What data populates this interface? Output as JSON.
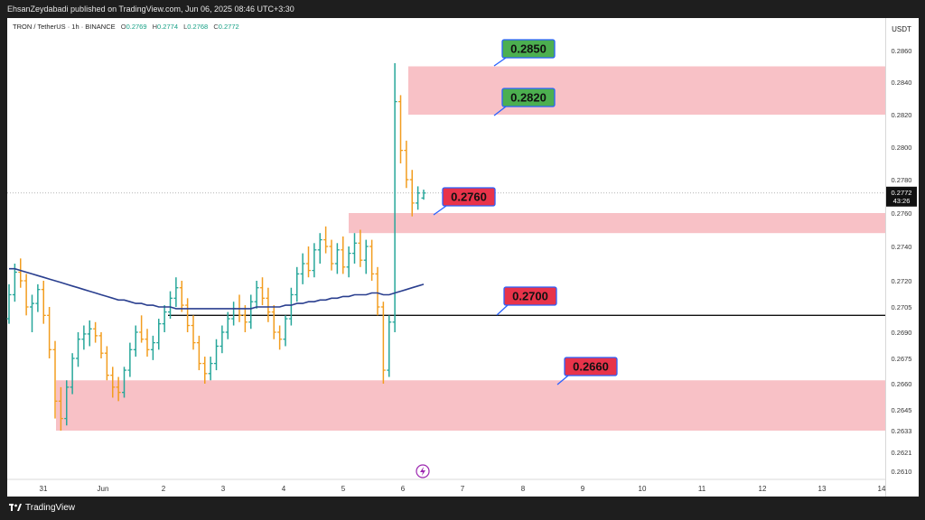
{
  "header": {
    "publisher": "EhsanZeydabadi published on TradingView.com, Jun 06, 2025 08:46 UTC+3:30"
  },
  "legend": {
    "symbol": "TRON / TetherUS · 1h · BINANCE",
    "o_label": "O",
    "o_value": "0.2769",
    "h_label": "H",
    "h_value": "0.2774",
    "l_label": "L",
    "l_value": "0.2768",
    "c_label": "C",
    "c_value": "0.2772"
  },
  "price_scale": {
    "currency": "USDT",
    "current_price": "0.2772",
    "countdown": "43:26"
  },
  "footer": {
    "brand": "TradingView"
  },
  "colors": {
    "zone_fill": "#f8c1c6",
    "bull_candle": "#26a69a",
    "bear_candle": "#f29d1f",
    "ma_line": "#2a3f8f",
    "tp_label_fill": "#4caf50",
    "level_label_fill": "#e8334a",
    "label_border": "#2962ff"
  },
  "chart_data": {
    "type": "candlestick",
    "symbol": "TRON / TetherUS",
    "timeframe": "1h",
    "exchange": "BINANCE",
    "x_ticks": [
      "31",
      "Jun",
      "2",
      "3",
      "4",
      "5",
      "6",
      "7",
      "8",
      "9",
      "10",
      "11",
      "12",
      "13",
      "14"
    ],
    "y_ticks": [
      "0.2860",
      "0.2840",
      "0.2820",
      "0.2800",
      "0.2780",
      "0.2760",
      "0.2740",
      "0.2720",
      "0.2705",
      "0.2690",
      "0.2675",
      "0.2660",
      "0.2645",
      "0.2633",
      "0.2621",
      "0.2610"
    ],
    "zones": [
      {
        "from": 0.282,
        "to": 0.285
      },
      {
        "from": 0.2748,
        "to": 0.276
      },
      {
        "from": 0.2633,
        "to": 0.2662
      }
    ],
    "horizontal_line": 0.27,
    "last_price": 0.2772,
    "level_labels": [
      {
        "text": "0.2850",
        "kind": "target"
      },
      {
        "text": "0.2820",
        "kind": "target"
      },
      {
        "text": "0.2760",
        "kind": "level"
      },
      {
        "text": "0.2700",
        "kind": "level"
      },
      {
        "text": "0.2660",
        "kind": "level"
      }
    ],
    "candles": [
      [
        0.2698,
        0.2718,
        0.2695,
        0.2712
      ],
      [
        0.2712,
        0.273,
        0.2708,
        0.2725
      ],
      [
        0.2725,
        0.2733,
        0.2716,
        0.272
      ],
      [
        0.272,
        0.2724,
        0.27,
        0.2705
      ],
      [
        0.2705,
        0.2712,
        0.269,
        0.2707
      ],
      [
        0.2707,
        0.2718,
        0.2702,
        0.2715
      ],
      [
        0.2715,
        0.272,
        0.2695,
        0.27
      ],
      [
        0.27,
        0.2705,
        0.2675,
        0.268
      ],
      [
        0.268,
        0.2685,
        0.264,
        0.265
      ],
      [
        0.265,
        0.2658,
        0.2633,
        0.264
      ],
      [
        0.264,
        0.2662,
        0.2636,
        0.2658
      ],
      [
        0.2658,
        0.2678,
        0.2654,
        0.2675
      ],
      [
        0.2675,
        0.269,
        0.267,
        0.2686
      ],
      [
        0.2686,
        0.2694,
        0.268,
        0.2689
      ],
      [
        0.2689,
        0.2697,
        0.2682,
        0.2692
      ],
      [
        0.2692,
        0.2696,
        0.2684,
        0.2688
      ],
      [
        0.2688,
        0.269,
        0.2675,
        0.2678
      ],
      [
        0.2678,
        0.2682,
        0.2662,
        0.2665
      ],
      [
        0.2665,
        0.267,
        0.2652,
        0.2658
      ],
      [
        0.2658,
        0.2664,
        0.265,
        0.2655
      ],
      [
        0.2655,
        0.267,
        0.2652,
        0.2668
      ],
      [
        0.2668,
        0.2684,
        0.2664,
        0.268
      ],
      [
        0.268,
        0.2694,
        0.2676,
        0.269
      ],
      [
        0.269,
        0.27,
        0.2684,
        0.2686
      ],
      [
        0.2686,
        0.2692,
        0.2676,
        0.268
      ],
      [
        0.268,
        0.2688,
        0.2674,
        0.2684
      ],
      [
        0.2684,
        0.2698,
        0.268,
        0.2695
      ],
      [
        0.2695,
        0.2706,
        0.269,
        0.2702
      ],
      [
        0.2702,
        0.2714,
        0.2698,
        0.271
      ],
      [
        0.271,
        0.2722,
        0.2705,
        0.2716
      ],
      [
        0.2716,
        0.272,
        0.2702,
        0.2706
      ],
      [
        0.2706,
        0.271,
        0.269,
        0.2694
      ],
      [
        0.2694,
        0.27,
        0.268,
        0.2684
      ],
      [
        0.2684,
        0.2688,
        0.2668,
        0.2672
      ],
      [
        0.2672,
        0.2676,
        0.266,
        0.2666
      ],
      [
        0.2666,
        0.2676,
        0.2662,
        0.2672
      ],
      [
        0.2672,
        0.2686,
        0.2668,
        0.2682
      ],
      [
        0.2682,
        0.2694,
        0.2678,
        0.269
      ],
      [
        0.269,
        0.2702,
        0.2686,
        0.2698
      ],
      [
        0.2698,
        0.2708,
        0.2694,
        0.2704
      ],
      [
        0.2704,
        0.2712,
        0.2696,
        0.27
      ],
      [
        0.27,
        0.2706,
        0.269,
        0.2696
      ],
      [
        0.2696,
        0.2712,
        0.2692,
        0.2708
      ],
      [
        0.2708,
        0.272,
        0.2704,
        0.2716
      ],
      [
        0.2716,
        0.2722,
        0.2706,
        0.271
      ],
      [
        0.271,
        0.2716,
        0.2696,
        0.2702
      ],
      [
        0.2702,
        0.2706,
        0.2686,
        0.269
      ],
      [
        0.269,
        0.2694,
        0.268,
        0.2686
      ],
      [
        0.2686,
        0.27,
        0.2682,
        0.2698
      ],
      [
        0.2698,
        0.2716,
        0.2694,
        0.2712
      ],
      [
        0.2712,
        0.2728,
        0.2708,
        0.2724
      ],
      [
        0.2724,
        0.2736,
        0.2718,
        0.273
      ],
      [
        0.273,
        0.274,
        0.2722,
        0.2726
      ],
      [
        0.2726,
        0.2742,
        0.2722,
        0.2738
      ],
      [
        0.2738,
        0.2748,
        0.273,
        0.2744
      ],
      [
        0.2744,
        0.2752,
        0.2736,
        0.274
      ],
      [
        0.274,
        0.2744,
        0.2726,
        0.273
      ],
      [
        0.273,
        0.2742,
        0.2724,
        0.2738
      ],
      [
        0.2738,
        0.2746,
        0.2724,
        0.2728
      ],
      [
        0.2728,
        0.274,
        0.2722,
        0.2736
      ],
      [
        0.2736,
        0.2748,
        0.273,
        0.2742
      ],
      [
        0.2742,
        0.275,
        0.2728,
        0.2732
      ],
      [
        0.2732,
        0.2744,
        0.2724,
        0.274
      ],
      [
        0.274,
        0.2744,
        0.272,
        0.2724
      ],
      [
        0.2724,
        0.2728,
        0.27,
        0.2705
      ],
      [
        0.2705,
        0.2708,
        0.266,
        0.2668
      ],
      [
        0.2668,
        0.27,
        0.2664,
        0.2696
      ],
      [
        0.2696,
        0.2852,
        0.269,
        0.2828
      ],
      [
        0.2828,
        0.2832,
        0.279,
        0.2798
      ],
      [
        0.2798,
        0.2804,
        0.2775,
        0.278
      ],
      [
        0.278,
        0.2786,
        0.2758,
        0.2766
      ],
      [
        0.2766,
        0.2776,
        0.2762,
        0.2772
      ],
      [
        0.2769,
        0.2774,
        0.2768,
        0.2772
      ]
    ],
    "ma_series": [
      0.2727,
      0.2727,
      0.2726,
      0.2725,
      0.2724,
      0.2723,
      0.2722,
      0.2721,
      0.272,
      0.2719,
      0.2718,
      0.2717,
      0.2716,
      0.2715,
      0.2714,
      0.2713,
      0.2712,
      0.2711,
      0.271,
      0.2709,
      0.2709,
      0.2708,
      0.2707,
      0.2707,
      0.2706,
      0.2706,
      0.2705,
      0.2705,
      0.2705,
      0.2704,
      0.2704,
      0.2704,
      0.2704,
      0.2704,
      0.2704,
      0.2704,
      0.2704,
      0.2704,
      0.2704,
      0.2704,
      0.2704,
      0.2704,
      0.2704,
      0.2705,
      0.2705,
      0.2705,
      0.2705,
      0.2705,
      0.2706,
      0.2706,
      0.2707,
      0.2707,
      0.2708,
      0.2708,
      0.2709,
      0.2709,
      0.271,
      0.271,
      0.2711,
      0.2711,
      0.2712,
      0.2712,
      0.2712,
      0.2713,
      0.2713,
      0.2712,
      0.2712,
      0.2713,
      0.2714,
      0.2715,
      0.2716,
      0.2717,
      0.2718
    ]
  }
}
